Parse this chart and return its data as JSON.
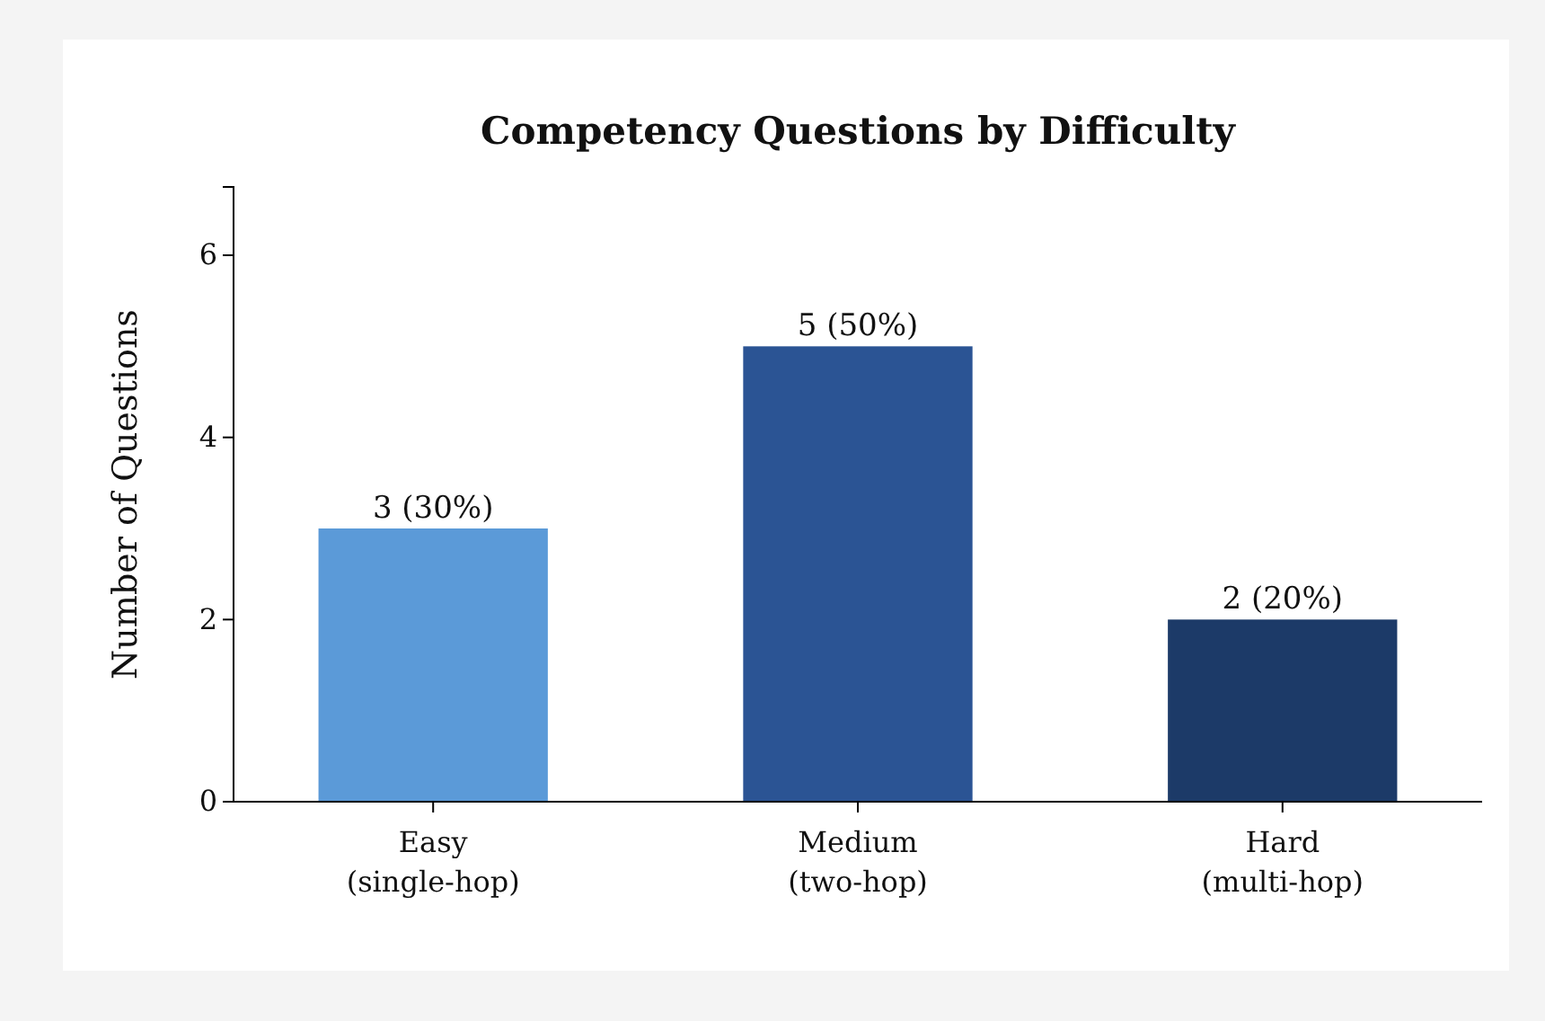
{
  "chart_data": {
    "type": "bar",
    "title": "Competency Questions by Difficulty",
    "ylabel": "Number of Questions",
    "categories": [
      "Easy\n(single-hop)",
      "Medium\n(two-hop)",
      "Hard\n(multi-hop)"
    ],
    "values": [
      3,
      5,
      2
    ],
    "colors": [
      "#5b9ad8",
      "#2b5494",
      "#1c3a68"
    ],
    "value_labels": [
      "3 (30%)",
      "5 (50%)",
      "2 (20%)"
    ],
    "ylim": [
      0,
      6.75
    ],
    "yticks": [
      0,
      2,
      4,
      6
    ]
  }
}
